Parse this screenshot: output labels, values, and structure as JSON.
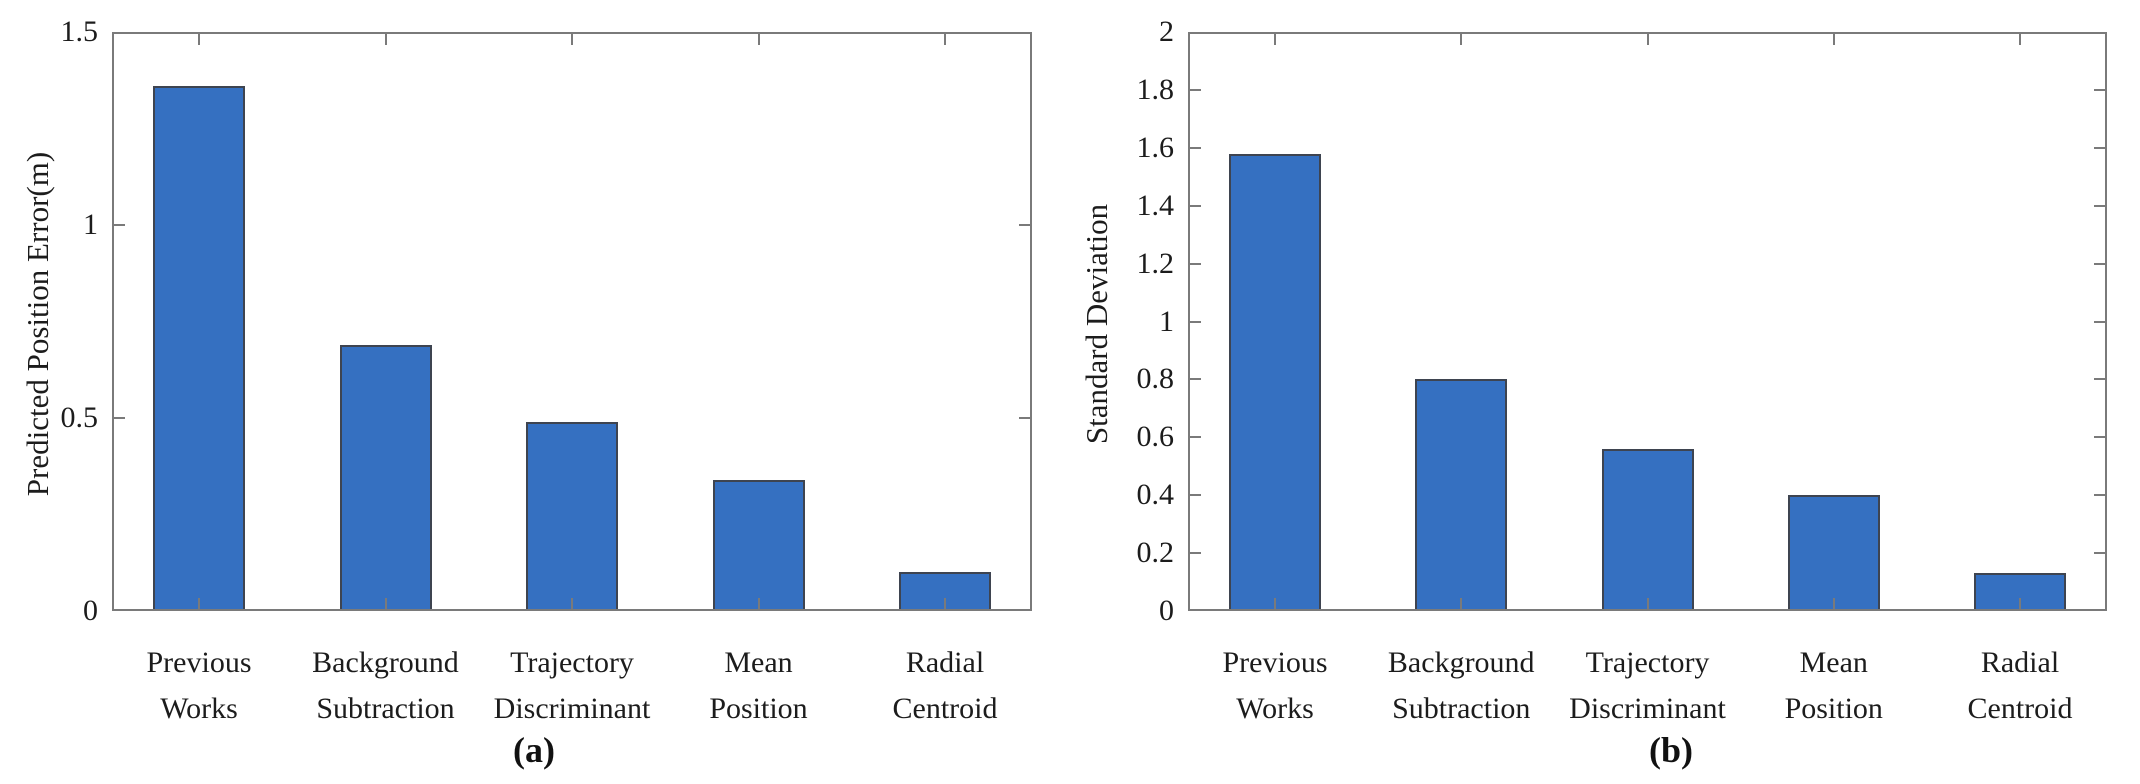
{
  "style": {
    "background": "#ffffff",
    "bar_color": "#3570c1",
    "bar_edge_color": "#3e4450",
    "axis_color": "#7a7a7a",
    "text_color": "#1c1c1c"
  },
  "chart_data": [
    {
      "type": "bar",
      "caption": "(a)",
      "title": "",
      "xlabel": "",
      "ylabel": "Predicted Position Error(m)",
      "categories": [
        "Previous Works",
        "Background Subtraction",
        "Trajectory Discriminant",
        "Mean Position",
        "Radial Centroid"
      ],
      "values": [
        1.36,
        0.69,
        0.49,
        0.34,
        0.1
      ],
      "ylim": [
        0,
        1.5
      ],
      "yticks": [
        0,
        0.5,
        1,
        1.5
      ],
      "ytick_labels": [
        "0",
        "0.5",
        "1",
        "1.5"
      ],
      "grid": false,
      "legend_position": "none"
    },
    {
      "type": "bar",
      "caption": "(b)",
      "title": "",
      "xlabel": "",
      "ylabel": "Standard Deviation",
      "categories": [
        "Previous Works",
        "Background Subtraction",
        "Trajectory Discriminant",
        "Mean Position",
        "Radial Centroid"
      ],
      "values": [
        1.58,
        0.8,
        0.56,
        0.4,
        0.13
      ],
      "ylim": [
        0,
        2
      ],
      "yticks": [
        0,
        0.2,
        0.4,
        0.6,
        0.8,
        1,
        1.2,
        1.4,
        1.6,
        1.8,
        2
      ],
      "ytick_labels": [
        "0",
        "0.2",
        "0.4",
        "0.6",
        "0.8",
        "1",
        "1.2",
        "1.4",
        "1.6",
        "1.8",
        "2"
      ],
      "grid": false,
      "legend_position": "none"
    }
  ]
}
